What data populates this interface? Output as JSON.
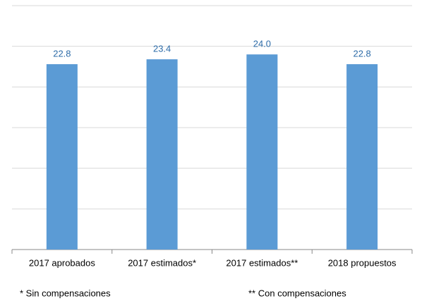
{
  "chart_data": {
    "type": "bar",
    "categories": [
      "2017 aprobados",
      "2017 estimados*",
      "2017 estimados**",
      "2018 propuestos"
    ],
    "values": [
      22.8,
      23.4,
      24,
      22.8
    ],
    "value_labels": [
      "22.8",
      "23.4",
      "24.0",
      "22.8"
    ],
    "color": "#5b9bd5",
    "ylim": [
      0,
      30
    ],
    "yticks": [
      0,
      5,
      10,
      15,
      20,
      25,
      30
    ],
    "grid": true,
    "notes": [
      "* Sin compensaciones",
      "** Con compensaciones"
    ]
  }
}
